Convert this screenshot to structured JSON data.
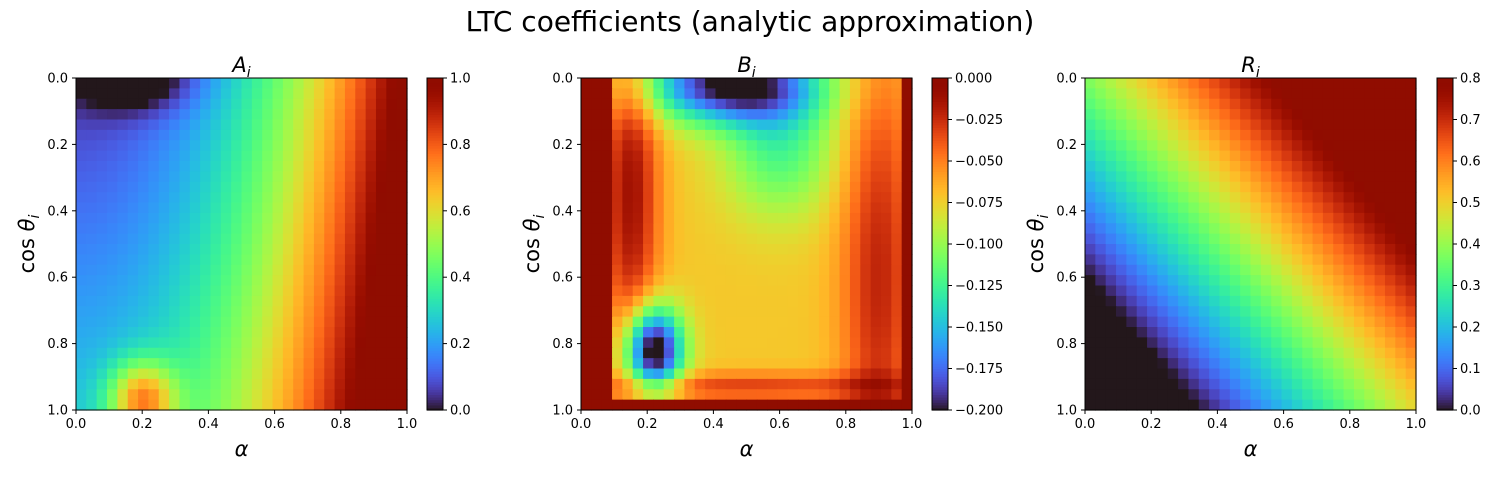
{
  "figure": {
    "title": "LTC coefficients (analytic approximation)"
  },
  "chart_data": [
    {
      "type": "heatmap",
      "title": "A_i",
      "xlabel": "α",
      "ylabel": "cos θ_i",
      "xlim": [
        0,
        1
      ],
      "ylim": [
        1,
        0
      ],
      "xticks": [
        "0.0",
        "0.2",
        "0.4",
        "0.6",
        "0.8",
        "1.0"
      ],
      "yticks": [
        "0.0",
        "0.2",
        "0.4",
        "0.6",
        "0.8",
        "1.0"
      ],
      "grid": [
        32,
        32
      ],
      "colorbar": {
        "min": 0,
        "max": 1,
        "ticks": [
          "0.0",
          "0.2",
          "0.4",
          "0.6",
          "0.8",
          "1.0"
        ]
      },
      "colormap": "turbo",
      "field": "A"
    },
    {
      "type": "heatmap",
      "title": "B_i",
      "xlabel": "α",
      "ylabel": "cos θ_i",
      "xlim": [
        0,
        1
      ],
      "ylim": [
        1,
        0
      ],
      "xticks": [
        "0.0",
        "0.2",
        "0.4",
        "0.6",
        "0.8",
        "1.0"
      ],
      "yticks": [
        "0.0",
        "0.2",
        "0.4",
        "0.6",
        "0.8",
        "1.0"
      ],
      "grid": [
        32,
        32
      ],
      "colorbar": {
        "min": -0.2,
        "max": 0,
        "ticks": [
          "−0.200",
          "−0.175",
          "−0.150",
          "−0.125",
          "−0.100",
          "−0.075",
          "−0.050",
          "−0.025",
          "0.000"
        ]
      },
      "colormap": "turbo",
      "field": "B"
    },
    {
      "type": "heatmap",
      "title": "R_i",
      "xlabel": "α",
      "ylabel": "cos θ_i",
      "xlim": [
        0,
        1
      ],
      "ylim": [
        1,
        0
      ],
      "xticks": [
        "0.0",
        "0.2",
        "0.4",
        "0.6",
        "0.8",
        "1.0"
      ],
      "yticks": [
        "0.0",
        "0.2",
        "0.4",
        "0.6",
        "0.8",
        "1.0"
      ],
      "grid": [
        32,
        32
      ],
      "colorbar": {
        "min": 0,
        "max": 0.8,
        "ticks": [
          "0.0",
          "0.1",
          "0.2",
          "0.3",
          "0.4",
          "0.5",
          "0.6",
          "0.7",
          "0.8"
        ]
      },
      "colormap": "turbo",
      "field": "R"
    }
  ]
}
